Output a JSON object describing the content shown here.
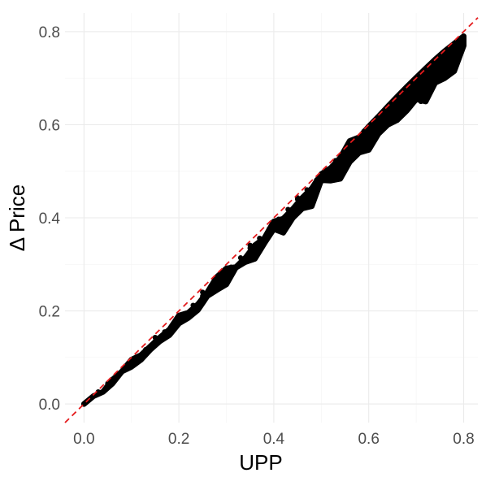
{
  "chart_data": {
    "type": "scatter",
    "title": "",
    "xlabel": "UPP",
    "ylabel": "Δ Price",
    "xlim": [
      -0.04,
      0.83
    ],
    "ylim": [
      -0.04,
      0.84
    ],
    "x_ticks": [
      0.0,
      0.2,
      0.4,
      0.6,
      0.8
    ],
    "x_tick_labels": [
      "0.0",
      "0.2",
      "0.4",
      "0.6",
      "0.8"
    ],
    "y_ticks": [
      0.0,
      0.2,
      0.4,
      0.6,
      0.8
    ],
    "y_tick_labels": [
      "0.0",
      "0.2",
      "0.4",
      "0.6",
      "0.8"
    ],
    "grid": true,
    "point_color": "#000000",
    "reference_line": {
      "slope": 1,
      "intercept": 0,
      "color": "#e41a1c",
      "style": "dashed"
    },
    "series": [
      {
        "points": [
          [
            0.0,
            0.0
          ],
          [
            0.02,
            0.017
          ],
          [
            0.03,
            0.026
          ],
          [
            0.05,
            0.044
          ],
          [
            0.06,
            0.052
          ],
          [
            0.08,
            0.07
          ],
          [
            0.09,
            0.08
          ],
          [
            0.1,
            0.088
          ],
          [
            0.11,
            0.098
          ],
          [
            0.12,
            0.105
          ],
          [
            0.13,
            0.117
          ],
          [
            0.14,
            0.124
          ],
          [
            0.15,
            0.135
          ],
          [
            0.16,
            0.141
          ],
          [
            0.17,
            0.155
          ],
          [
            0.18,
            0.16
          ],
          [
            0.19,
            0.173
          ],
          [
            0.2,
            0.178
          ],
          [
            0.21,
            0.192
          ],
          [
            0.22,
            0.196
          ],
          [
            0.23,
            0.212
          ],
          [
            0.24,
            0.214
          ],
          [
            0.25,
            0.232
          ],
          [
            0.26,
            0.233
          ],
          [
            0.27,
            0.253
          ],
          [
            0.28,
            0.253
          ],
          [
            0.29,
            0.273
          ],
          [
            0.3,
            0.273
          ],
          [
            0.31,
            0.294
          ],
          [
            0.32,
            0.293
          ],
          [
            0.33,
            0.314
          ],
          [
            0.34,
            0.313
          ],
          [
            0.35,
            0.335
          ],
          [
            0.36,
            0.334
          ],
          [
            0.37,
            0.356
          ],
          [
            0.38,
            0.355
          ],
          [
            0.39,
            0.376
          ],
          [
            0.4,
            0.376
          ],
          [
            0.41,
            0.397
          ],
          [
            0.42,
            0.398
          ],
          [
            0.43,
            0.418
          ],
          [
            0.44,
            0.419
          ],
          [
            0.45,
            0.44
          ],
          [
            0.46,
            0.441
          ],
          [
            0.47,
            0.46
          ],
          [
            0.48,
            0.463
          ],
          [
            0.49,
            0.481
          ],
          [
            0.5,
            0.485
          ],
          [
            0.51,
            0.502
          ],
          [
            0.52,
            0.507
          ],
          [
            0.53,
            0.523
          ],
          [
            0.54,
            0.529
          ],
          [
            0.55,
            0.544
          ],
          [
            0.56,
            0.551
          ],
          [
            0.57,
            0.565
          ],
          [
            0.58,
            0.573
          ],
          [
            0.59,
            0.586
          ],
          [
            0.6,
            0.595
          ],
          [
            0.61,
            0.606
          ],
          [
            0.62,
            0.617
          ],
          [
            0.63,
            0.627
          ],
          [
            0.64,
            0.639
          ],
          [
            0.65,
            0.648
          ],
          [
            0.66,
            0.66
          ],
          [
            0.67,
            0.668
          ],
          [
            0.68,
            0.681
          ],
          [
            0.69,
            0.688
          ],
          [
            0.7,
            0.701
          ],
          [
            0.71,
            0.708
          ],
          [
            0.72,
            0.721
          ],
          [
            0.73,
            0.728
          ],
          [
            0.74,
            0.74
          ],
          [
            0.75,
            0.748
          ],
          [
            0.76,
            0.758
          ],
          [
            0.77,
            0.766
          ],
          [
            0.78,
            0.774
          ],
          [
            0.79,
            0.783
          ],
          [
            0.8,
            0.79
          ],
          [
            0.1,
            0.095
          ],
          [
            0.15,
            0.143
          ],
          [
            0.2,
            0.19
          ],
          [
            0.25,
            0.24
          ],
          [
            0.3,
            0.291
          ],
          [
            0.35,
            0.341
          ],
          [
            0.4,
            0.392
          ],
          [
            0.45,
            0.443
          ],
          [
            0.5,
            0.494
          ],
          [
            0.55,
            0.545
          ],
          [
            0.6,
            0.596
          ],
          [
            0.65,
            0.648
          ],
          [
            0.7,
            0.698
          ],
          [
            0.75,
            0.749
          ],
          [
            0.12,
            0.095
          ],
          [
            0.18,
            0.148
          ],
          [
            0.24,
            0.202
          ],
          [
            0.3,
            0.257
          ],
          [
            0.36,
            0.312
          ],
          [
            0.42,
            0.368
          ],
          [
            0.48,
            0.425
          ],
          [
            0.54,
            0.484
          ],
          [
            0.6,
            0.546
          ],
          [
            0.66,
            0.61
          ],
          [
            0.72,
            0.674
          ],
          [
            0.78,
            0.737
          ],
          [
            0.63,
            0.6
          ],
          [
            0.66,
            0.62
          ],
          [
            0.69,
            0.655
          ],
          [
            0.72,
            0.67
          ],
          [
            0.74,
            0.69
          ],
          [
            0.77,
            0.715
          ],
          [
            0.71,
            0.65
          ],
          [
            0.68,
            0.63
          ],
          [
            0.75,
            0.7
          ],
          [
            0.8,
            0.77
          ],
          [
            0.58,
            0.54
          ],
          [
            0.62,
            0.58
          ],
          [
            0.56,
            0.52
          ],
          [
            0.52,
            0.48
          ],
          [
            0.46,
            0.42
          ],
          [
            0.44,
            0.4
          ],
          [
            0.38,
            0.345
          ],
          [
            0.34,
            0.305
          ],
          [
            0.28,
            0.245
          ],
          [
            0.22,
            0.185
          ]
        ]
      }
    ]
  }
}
